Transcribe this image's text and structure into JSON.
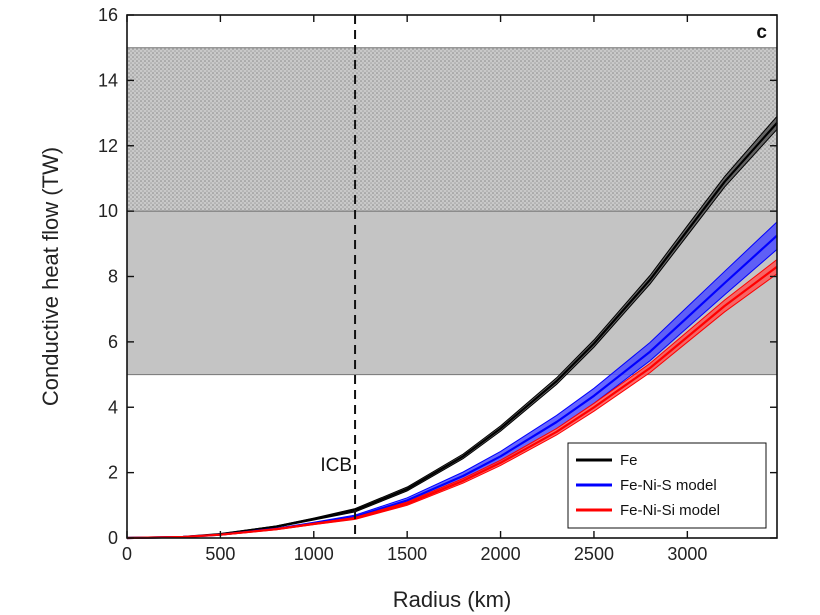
{
  "chart_data": {
    "type": "line",
    "panel_label": "c",
    "xlabel": "Radius (km)",
    "ylabel": "Conductive heat flow (TW)",
    "xlim": [
      0,
      3480
    ],
    "ylim": [
      0,
      16
    ],
    "xticks": [
      0,
      500,
      1000,
      1500,
      2000,
      2500,
      3000
    ],
    "yticks": [
      0,
      2,
      4,
      6,
      8,
      10,
      12,
      14,
      16
    ],
    "grid": false,
    "legend_position": "bottom-right",
    "bands": [
      {
        "y0": 5,
        "y1": 10,
        "fill": "#c4c4c4",
        "pattern": "solid"
      },
      {
        "y0": 10,
        "y1": 15,
        "fill": "#bdbdbd",
        "pattern": "dotted"
      }
    ],
    "vline": {
      "x": 1221,
      "label": "ICB",
      "style": "dashed"
    },
    "series": [
      {
        "name": "Fe",
        "color": "#000000",
        "band_color": "#555555",
        "x": [
          0,
          300,
          500,
          800,
          1000,
          1221,
          1500,
          1800,
          2000,
          2300,
          2500,
          2800,
          3000,
          3200,
          3480
        ],
        "y": [
          0,
          0.03,
          0.12,
          0.35,
          0.58,
          0.85,
          1.5,
          2.5,
          3.35,
          4.8,
          5.95,
          7.9,
          9.4,
          10.9,
          12.7
        ],
        "spread": [
          0,
          0,
          0.01,
          0.02,
          0.03,
          0.05,
          0.06,
          0.07,
          0.08,
          0.1,
          0.11,
          0.13,
          0.15,
          0.16,
          0.2
        ]
      },
      {
        "name": "Fe-Ni-S model",
        "color": "#0000ff",
        "band_color": "#4d4dff",
        "x": [
          0,
          300,
          500,
          800,
          1000,
          1221,
          1500,
          1800,
          2000,
          2300,
          2500,
          2800,
          3000,
          3200,
          3480
        ],
        "y": [
          0,
          0.03,
          0.1,
          0.28,
          0.45,
          0.65,
          1.15,
          1.9,
          2.5,
          3.55,
          4.35,
          5.7,
          6.75,
          7.8,
          9.25
        ],
        "spread": [
          0,
          0,
          0.01,
          0.02,
          0.03,
          0.05,
          0.08,
          0.12,
          0.15,
          0.2,
          0.23,
          0.28,
          0.32,
          0.36,
          0.42
        ]
      },
      {
        "name": "Fe-Ni-Si model",
        "color": "#ff0000",
        "band_color": "#ff5555",
        "x": [
          0,
          300,
          500,
          800,
          1000,
          1221,
          1500,
          1800,
          2000,
          2300,
          2500,
          2800,
          3000,
          3200,
          3480
        ],
        "y": [
          0,
          0.03,
          0.1,
          0.27,
          0.43,
          0.6,
          1.05,
          1.75,
          2.3,
          3.25,
          4.0,
          5.2,
          6.15,
          7.1,
          8.3
        ],
        "spread": [
          0,
          0,
          0.01,
          0.02,
          0.02,
          0.03,
          0.05,
          0.07,
          0.08,
          0.1,
          0.12,
          0.14,
          0.16,
          0.18,
          0.22
        ]
      }
    ]
  }
}
